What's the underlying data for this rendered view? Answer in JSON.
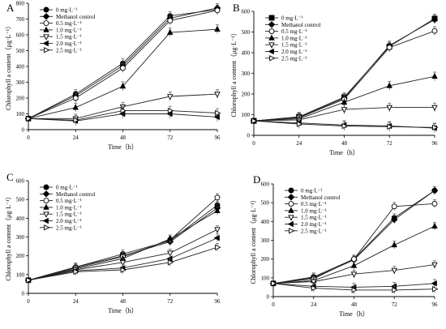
{
  "chart_data": [
    {
      "panel": "A",
      "type": "line",
      "xlabel": "Time（h）",
      "ylabel": "Chlorophyll a content（μg·L⁻¹）",
      "x": [
        0,
        24,
        48,
        72,
        96
      ],
      "xticks": [
        "0",
        "24",
        "48",
        "72",
        "96"
      ],
      "ylim": [
        0,
        800
      ],
      "yticks": [
        0,
        100,
        200,
        300,
        400,
        500,
        600,
        700,
        800
      ],
      "legend_position": "top-left",
      "series": [
        {
          "name": "0 mg·L⁻¹",
          "marker": "circle-filled",
          "values": [
            70,
            225,
            420,
            720,
            760
          ]
        },
        {
          "name": "Methanol control",
          "marker": "diamond-filled",
          "values": [
            70,
            215,
            405,
            705,
            770
          ]
        },
        {
          "name": "0.5 mg·L⁻¹",
          "marker": "circle-open",
          "values": [
            70,
            200,
            390,
            690,
            755
          ]
        },
        {
          "name": "1.0 mg·L⁻¹",
          "marker": "triangle-up-filled",
          "values": [
            70,
            140,
            275,
            615,
            635
          ]
        },
        {
          "name": "1.5 mg·L⁻¹",
          "marker": "triangle-down-open",
          "values": [
            70,
            70,
            145,
            210,
            225
          ]
        },
        {
          "name": "2.0 mg·L⁻¹",
          "marker": "triangle-left-filled",
          "values": [
            70,
            55,
            100,
            100,
            80
          ]
        },
        {
          "name": "2.5 mg·L⁻¹",
          "marker": "triangle-right-open",
          "values": [
            70,
            60,
            120,
            120,
            105
          ]
        }
      ]
    },
    {
      "panel": "B",
      "type": "line",
      "xlabel": "Time（h）",
      "ylabel": "Chlorophyll a content（μg·L⁻¹）",
      "x": [
        0,
        24,
        48,
        72,
        96
      ],
      "xticks": [
        "0",
        "24",
        "48",
        "72",
        "96"
      ],
      "ylim": [
        0,
        600
      ],
      "yticks": [
        0,
        100,
        200,
        300,
        400,
        500,
        600
      ],
      "legend_position": "top-left",
      "series": [
        {
          "name": "0 mg·L⁻¹",
          "marker": "square-filled",
          "values": [
            70,
            90,
            185,
            430,
            565
          ]
        },
        {
          "name": "Methanol control",
          "marker": "diamond-filled",
          "values": [
            70,
            88,
            180,
            435,
            560
          ]
        },
        {
          "name": "0.5 mg·L⁻¹",
          "marker": "circle-open",
          "values": [
            70,
            85,
            175,
            425,
            505
          ]
        },
        {
          "name": "1.0 mg·L⁻¹",
          "marker": "triangle-up-filled",
          "values": [
            70,
            80,
            160,
            240,
            285
          ]
        },
        {
          "name": "1.5 mg·L⁻¹",
          "marker": "triangle-down-open",
          "values": [
            70,
            75,
            125,
            135,
            135
          ]
        },
        {
          "name": "2.0 mg·L⁻¹",
          "marker": "triangle-left-filled",
          "values": [
            70,
            60,
            50,
            45,
            35
          ]
        },
        {
          "name": "2.5 mg·L⁻¹",
          "marker": "triangle-right-open",
          "values": [
            70,
            55,
            45,
            42,
            38
          ]
        }
      ]
    },
    {
      "panel": "C",
      "type": "line",
      "xlabel": "Time（h）",
      "ylabel": "Chlorophyll a content（μg·L⁻¹）",
      "x": [
        0,
        24,
        48,
        72,
        96
      ],
      "xticks": [
        "0",
        "24",
        "48",
        "72",
        "96"
      ],
      "ylim": [
        0,
        600
      ],
      "yticks": [
        0,
        100,
        200,
        300,
        400,
        500,
        600
      ],
      "legend_position": "top-left",
      "series": [
        {
          "name": "0 mg·L⁻¹",
          "marker": "circle-filled",
          "values": [
            70,
            140,
            210,
            280,
            470
          ]
        },
        {
          "name": "Methanol control",
          "marker": "diamond-filled",
          "values": [
            70,
            140,
            200,
            275,
            455
          ]
        },
        {
          "name": "0.5 mg·L⁻¹",
          "marker": "circle-open",
          "values": [
            70,
            135,
            195,
            285,
            510
          ]
        },
        {
          "name": "1.0 mg·L⁻¹",
          "marker": "triangle-up-filled",
          "values": [
            70,
            130,
            185,
            290,
            440
          ]
        },
        {
          "name": "1.5 mg·L⁻¹",
          "marker": "triangle-down-open",
          "values": [
            70,
            125,
            165,
            215,
            340
          ]
        },
        {
          "name": "2.0 mg·L⁻¹",
          "marker": "triangle-left-filled",
          "values": [
            70,
            120,
            135,
            185,
            295
          ]
        },
        {
          "name": "2.5 mg·L⁻¹",
          "marker": "triangle-right-open",
          "values": [
            70,
            115,
            125,
            165,
            245
          ]
        }
      ]
    },
    {
      "panel": "D",
      "type": "line",
      "xlabel": "Time（h）",
      "ylabel": "Chlorophyll a content（μg·L⁻¹）",
      "x": [
        0,
        24,
        48,
        72,
        96
      ],
      "xticks": [
        "0",
        "24",
        "48",
        "72",
        "96"
      ],
      "ylim": [
        0,
        600
      ],
      "yticks": [
        0,
        100,
        200,
        300,
        400,
        500,
        600
      ],
      "legend_position": "top-left",
      "series": [
        {
          "name": "0 mg·L⁻¹",
          "marker": "circle-filled",
          "values": [
            70,
            105,
            200,
            420,
            565
          ]
        },
        {
          "name": "Methanol control",
          "marker": "diamond-filled",
          "values": [
            70,
            100,
            195,
            410,
            565
          ]
        },
        {
          "name": "0.5 mg·L⁻¹",
          "marker": "circle-open",
          "values": [
            70,
            95,
            200,
            480,
            495
          ]
        },
        {
          "name": "1.0 mg·L⁻¹",
          "marker": "triangle-up-filled",
          "values": [
            70,
            85,
            165,
            275,
            375
          ]
        },
        {
          "name": "1.5 mg·L⁻¹",
          "marker": "triangle-down-open",
          "values": [
            70,
            80,
            120,
            140,
            170
          ]
        },
        {
          "name": "2.0 mg·L⁻¹",
          "marker": "triangle-left-filled",
          "values": [
            70,
            55,
            50,
            55,
            70
          ]
        },
        {
          "name": "2.5 mg·L⁻¹",
          "marker": "triangle-right-open",
          "values": [
            70,
            45,
            35,
            35,
            40
          ]
        }
      ]
    }
  ]
}
